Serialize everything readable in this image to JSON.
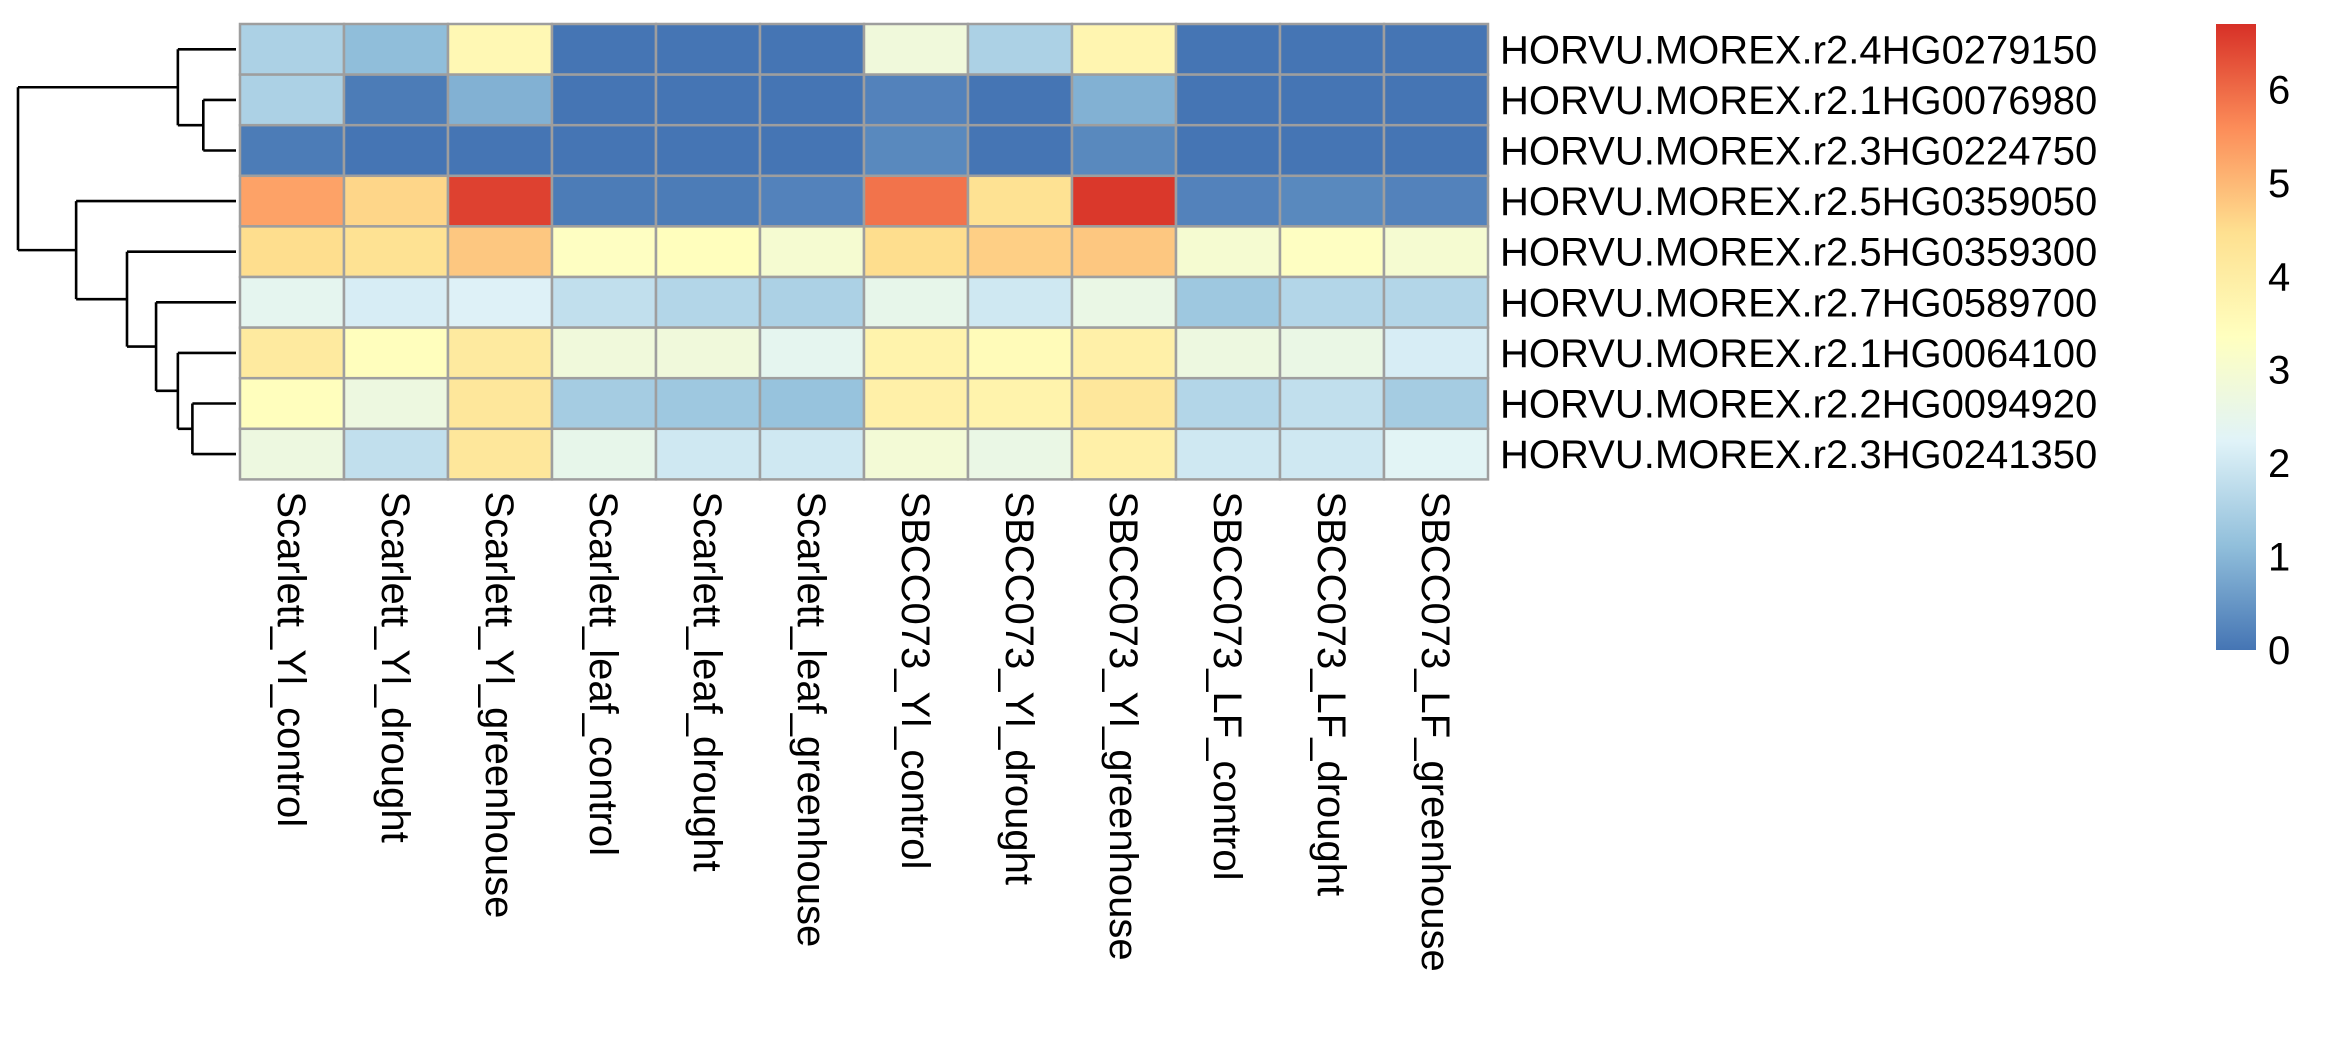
{
  "chart_data": {
    "type": "heatmap",
    "title": "",
    "xlabel": "",
    "ylabel": "",
    "columns": [
      "Scarlett_Yl_control",
      "Scarlett_Yl_drought",
      "Scarlett_Yl_greenhouse",
      "Scarlett_leaf_control",
      "Scarlett_leaf_drought",
      "Scarlett_leaf_greenhouse",
      "SBCC073_Yl_control",
      "SBCC073_Yl_drought",
      "SBCC073_Yl_greenhouse",
      "SBCC073_LF_control",
      "SBCC073_LF_drought",
      "SBCC073_LF_greenhouse"
    ],
    "rows": [
      "HORVU.MOREX.r2.4HG0279150",
      "HORVU.MOREX.r2.1HG0076980",
      "HORVU.MOREX.r2.3HG0224750",
      "HORVU.MOREX.r2.5HG0359050",
      "HORVU.MOREX.r2.5HG0359300",
      "HORVU.MOREX.r2.7HG0589700",
      "HORVU.MOREX.r2.1HG0064100",
      "HORVU.MOREX.r2.2HG0094920",
      "HORVU.MOREX.r2.3HG0241350"
    ],
    "values": [
      [
        1.5,
        1.1,
        3.6,
        0.0,
        0.0,
        0.0,
        2.8,
        1.5,
        3.7,
        0.0,
        0.0,
        0.0
      ],
      [
        1.5,
        0.1,
        0.9,
        0.0,
        0.0,
        0.0,
        0.2,
        0.0,
        0.9,
        0.0,
        0.0,
        0.0
      ],
      [
        0.1,
        0.0,
        0.0,
        0.0,
        0.0,
        0.0,
        0.3,
        0.0,
        0.3,
        0.0,
        0.0,
        0.0
      ],
      [
        5.3,
        4.6,
        6.5,
        0.1,
        0.1,
        0.2,
        5.9,
        4.4,
        6.6,
        0.2,
        0.3,
        0.2
      ],
      [
        4.5,
        4.4,
        4.8,
        3.3,
        3.4,
        3.0,
        4.5,
        4.7,
        4.8,
        3.0,
        3.3,
        3.0
      ],
      [
        2.4,
        2.1,
        2.2,
        1.8,
        1.6,
        1.5,
        2.5,
        2.0,
        2.6,
        1.3,
        1.6,
        1.6
      ],
      [
        4.1,
        3.4,
        4.1,
        2.8,
        2.8,
        2.4,
        3.8,
        3.5,
        3.9,
        2.7,
        2.6,
        2.1
      ],
      [
        3.4,
        2.7,
        4.2,
        1.4,
        1.3,
        1.2,
        3.9,
        3.8,
        4.2,
        1.6,
        1.8,
        1.4
      ],
      [
        2.7,
        1.8,
        4.2,
        2.5,
        2.0,
        2.0,
        2.9,
        2.6,
        3.9,
        2.0,
        2.0,
        2.3
      ]
    ],
    "row_dendrogram": {
      "merges": [
        [
          -2,
          -3,
          0.9
        ],
        [
          -1,
          1,
          1.6
        ],
        [
          -8,
          -9,
          1.2
        ],
        [
          -7,
          3,
          1.6
        ],
        [
          -6,
          4,
          2.2
        ],
        [
          -5,
          5,
          3.0
        ],
        [
          -4,
          6,
          4.4
        ],
        [
          2,
          7,
          6.0
        ]
      ],
      "order": [
        1,
        2,
        3,
        4,
        5,
        6,
        7,
        8,
        9
      ]
    },
    "legend": {
      "type": "colorbar",
      "placement": "right",
      "ticks": [
        0,
        1,
        2,
        3,
        4,
        5,
        6
      ],
      "range": [
        0,
        6.7
      ],
      "palette": [
        "#4575B4",
        "#91BFDB",
        "#E0F3F8",
        "#FFFFBF",
        "#FEE090",
        "#FC8D59",
        "#D73027"
      ]
    },
    "grid": true,
    "cell_border_color": "#9E9E9E"
  }
}
